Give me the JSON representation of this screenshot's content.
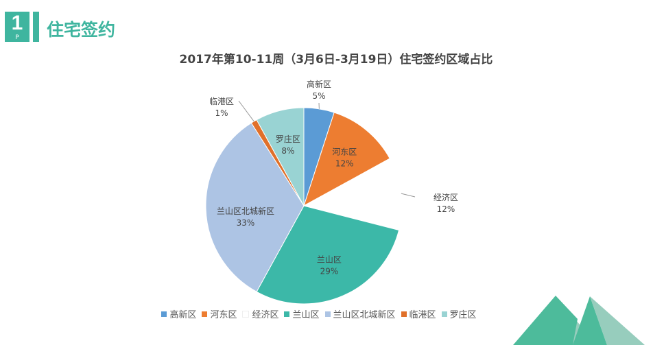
{
  "header": {
    "badge_number": "1",
    "badge_sub": "P",
    "title": "住宅签约"
  },
  "chart_data": {
    "type": "pie",
    "title": "2017年第10-11周（3月6日-3月19日）住宅签约区域占比",
    "categories": [
      "高新区",
      "河东区",
      "经济区",
      "兰山区",
      "兰山区北城新区",
      "临港区",
      "罗庄区"
    ],
    "values": [
      5,
      12,
      12,
      29,
      33,
      1,
      8
    ],
    "labels": [
      "5%",
      "12%",
      "12%",
      "29%",
      "33%",
      "1%",
      "8%"
    ],
    "colors": [
      "#5b9bd5",
      "#ed7d31",
      "#ffffff",
      "#3cb8a8",
      "#adc4e4",
      "#e0702a",
      "#99d3d3"
    ],
    "legend_position": "bottom"
  }
}
